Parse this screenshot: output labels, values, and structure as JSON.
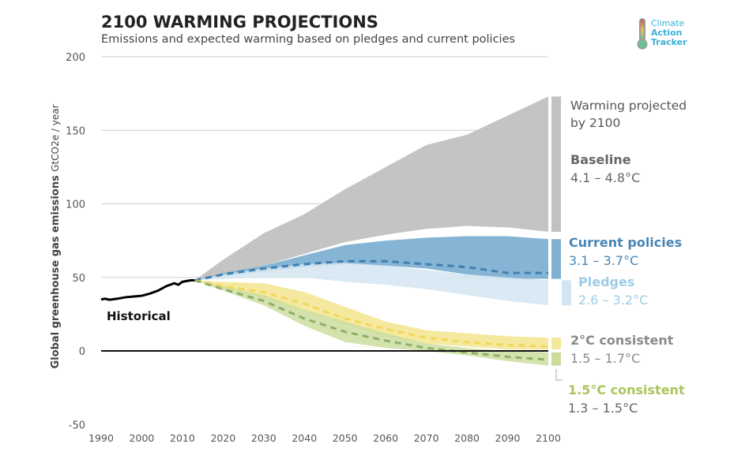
{
  "chart_data": {
    "type": "area",
    "title": "2100 WARMING PROJECTIONS",
    "subtitle": "Emissions and expected warming based on pledges and current policies",
    "ylabel": "Global greenhouse gas emissions",
    "ylabel_unit": "GtCO2e / year",
    "xlim": [
      1990,
      2100
    ],
    "ylim": [
      -50,
      200
    ],
    "xticks": [
      1990,
      2000,
      2010,
      2020,
      2030,
      2040,
      2050,
      2060,
      2070,
      2080,
      2090,
      2100
    ],
    "yticks": [
      -50,
      0,
      50,
      100,
      150,
      200
    ],
    "grid": true,
    "historical": {
      "name": "Historical",
      "x": [
        1990,
        1991,
        1992,
        1994,
        1996,
        1998,
        2000,
        2002,
        2004,
        2006,
        2007,
        2008,
        2009,
        2010,
        2011,
        2012,
        2013
      ],
      "y": [
        35,
        35.5,
        34.8,
        35.5,
        36.5,
        37,
        37.5,
        39,
        41,
        44,
        45,
        46,
        45,
        47,
        47.5,
        48,
        48
      ]
    },
    "x": [
      2013,
      2020,
      2030,
      2040,
      2050,
      2060,
      2070,
      2080,
      2090,
      2100
    ],
    "series": [
      {
        "name": "Baseline",
        "range": "4.1 – 4.8°C",
        "color": "#c1c1c1",
        "upper": [
          48,
          62,
          80,
          93,
          110,
          125,
          140,
          147,
          160,
          173
        ],
        "lower": [
          48,
          52,
          58,
          66,
          74,
          79,
          83,
          85,
          84,
          81
        ]
      },
      {
        "name": "Pledges",
        "range": "2.6 – 3.2°C",
        "color": "#d3e5f1",
        "upper": [
          48,
          52,
          56,
          59,
          60,
          58,
          55,
          52,
          50,
          48
        ],
        "lower": [
          48,
          49,
          50,
          50,
          47,
          45,
          42,
          38,
          34,
          31
        ]
      },
      {
        "name": "Current policies",
        "range": "3.1 – 3.7°C",
        "color": "#7fb0d3",
        "median_color": "#3f7fb0",
        "upper": [
          48,
          53,
          58,
          65,
          72,
          75,
          77,
          78,
          78,
          76
        ],
        "lower": [
          48,
          51,
          54,
          57,
          59,
          58,
          56,
          52,
          49,
          49
        ],
        "median": [
          48,
          52,
          56,
          59,
          61,
          61,
          59,
          57,
          53,
          53
        ]
      },
      {
        "name": "2°C consistent",
        "range": "1.5 – 1.7°C",
        "color": "#f4e89a",
        "median_color": "#f1d75a",
        "upper": [
          48,
          47,
          46,
          40,
          30,
          20,
          14,
          12,
          10,
          9
        ],
        "lower": [
          48,
          43,
          36,
          27,
          18,
          10,
          5,
          3,
          1,
          1
        ],
        "median": [
          48,
          44,
          40,
          32,
          22,
          15,
          9,
          6,
          4,
          3
        ]
      },
      {
        "name": "1.5°C consistent",
        "range": "1.3 – 1.5°C",
        "color": "#c9dc9a",
        "median_color": "#8fae6a",
        "upper": [
          48,
          44,
          38,
          28,
          20,
          12,
          5,
          2,
          0,
          -1
        ],
        "lower": [
          48,
          41,
          31,
          17,
          6,
          2,
          0,
          -3,
          -7,
          -10
        ],
        "median": [
          48,
          42,
          34,
          22,
          13,
          7,
          2,
          -1,
          -4,
          -6
        ]
      }
    ],
    "annotations": {
      "header": "Warming projected by 2100",
      "header_line1": "Warming projected",
      "header_line2": "by 2100"
    },
    "label_colors": {
      "Baseline": "#666666",
      "Current policies": "#4a86b5",
      "Pledges": "#9fcbe6",
      "2°C consistent": "#8a8a8a",
      "1.5°C consistent": "#a9c55a"
    }
  },
  "logo": {
    "line1": "Climate",
    "line2": "Action",
    "line3": "Tracker"
  }
}
